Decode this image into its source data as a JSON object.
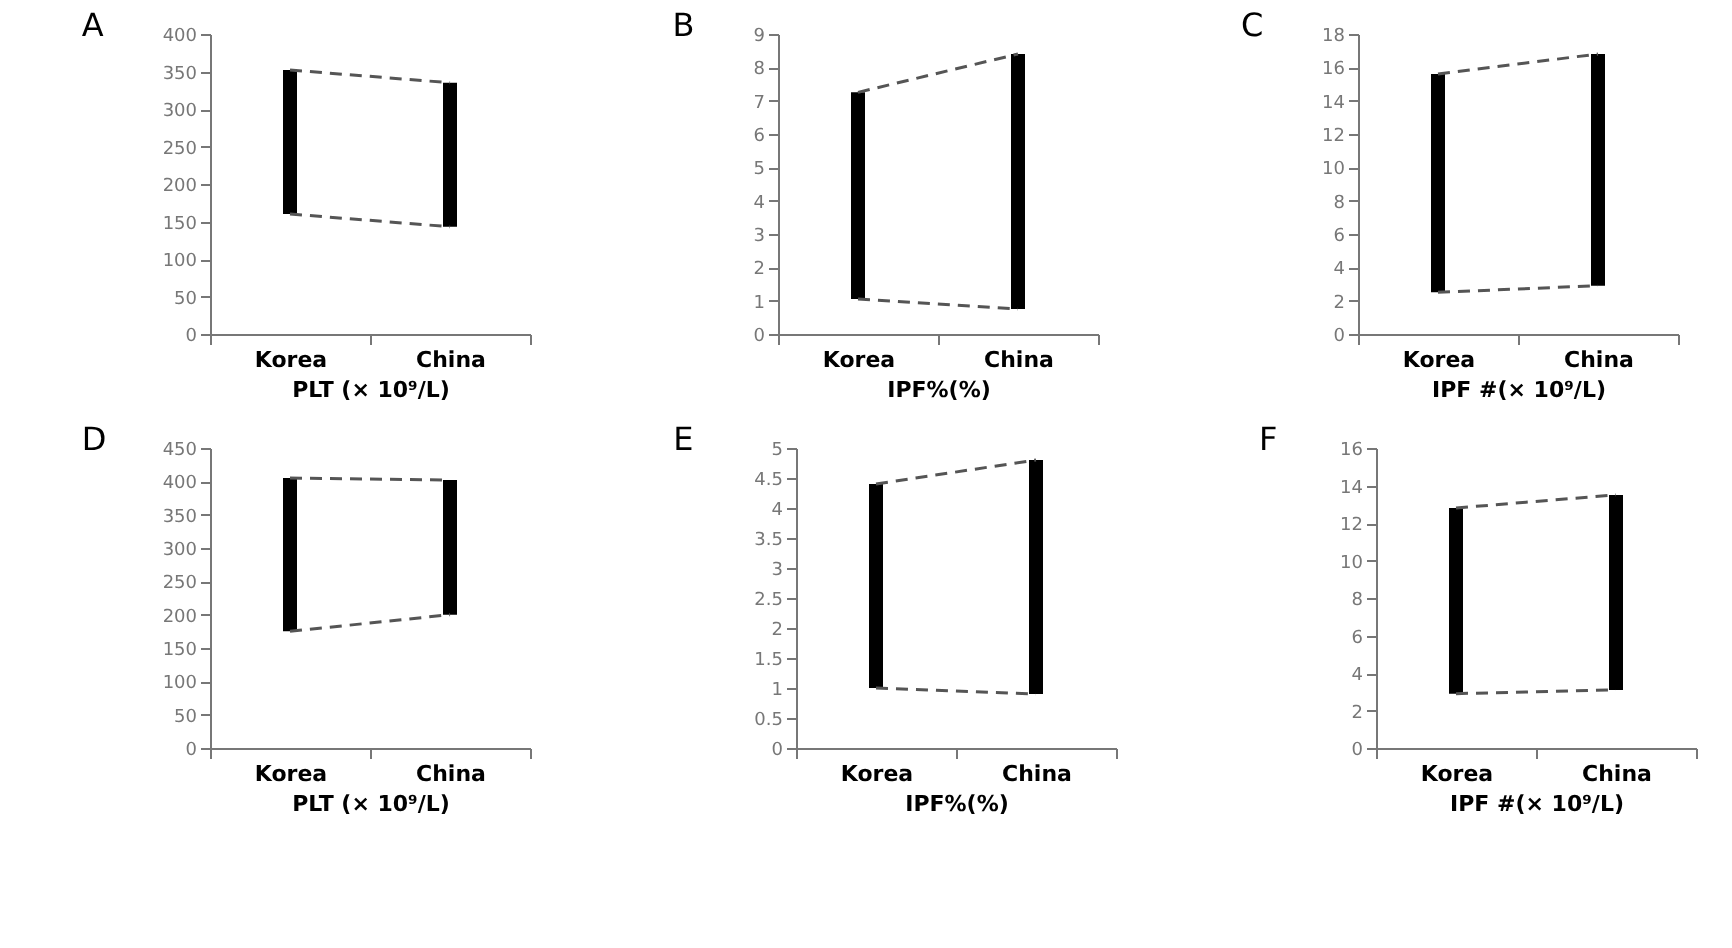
{
  "chart_data": [
    {
      "type": "bar",
      "title": "A",
      "xlabel": "PLT (× 10⁹/L)",
      "categories": [
        "Korea",
        "China"
      ],
      "ylim": [
        0,
        400
      ],
      "yticks": [
        0,
        50,
        100,
        150,
        200,
        250,
        300,
        350,
        400
      ],
      "grid": false,
      "legend": false,
      "series": [
        {
          "color": "#000000",
          "base": [
            160,
            143
          ],
          "values": [
            192,
            192
          ]
        },
        {
          "type": "line",
          "color": "#555555",
          "line_style": "dashed",
          "values": [
            352,
            335
          ]
        },
        {
          "type": "line",
          "color": "#555555",
          "line_style": "dashed",
          "values": [
            160,
            143
          ]
        }
      ]
    },
    {
      "type": "bar",
      "title": "B",
      "xlabel": "IPF%(%)",
      "categories": [
        "Korea",
        "China"
      ],
      "ylim": [
        0,
        9
      ],
      "yticks": [
        0,
        1,
        2,
        3,
        4,
        5,
        6,
        7,
        8,
        9
      ],
      "grid": false,
      "legend": false,
      "series": [
        {
          "color": "#000000",
          "base": [
            1.05,
            0.75
          ],
          "values": [
            6.2,
            7.65
          ]
        },
        {
          "type": "line",
          "color": "#555555",
          "line_style": "dashed",
          "values": [
            7.25,
            8.4
          ]
        },
        {
          "type": "line",
          "color": "#555555",
          "line_style": "dashed",
          "values": [
            1.05,
            0.75
          ]
        }
      ]
    },
    {
      "type": "bar",
      "title": "C",
      "xlabel": "IPF #(× 10⁹/L)",
      "categories": [
        "Korea",
        "China"
      ],
      "ylim": [
        0,
        18
      ],
      "yticks": [
        0,
        2,
        4,
        6,
        8,
        10,
        12,
        14,
        16,
        18
      ],
      "grid": false,
      "legend": false,
      "series": [
        {
          "color": "#000000",
          "base": [
            2.5,
            2.9
          ],
          "values": [
            13.1,
            13.9
          ]
        },
        {
          "type": "line",
          "color": "#555555",
          "line_style": "dashed",
          "values": [
            15.6,
            16.8
          ]
        },
        {
          "type": "line",
          "color": "#555555",
          "line_style": "dashed",
          "values": [
            2.5,
            2.9
          ]
        }
      ]
    },
    {
      "type": "bar",
      "title": "D",
      "xlabel": "PLT (× 10⁹/L)",
      "categories": [
        "Korea",
        "China"
      ],
      "ylim": [
        0,
        450
      ],
      "yticks": [
        0,
        50,
        100,
        150,
        200,
        250,
        300,
        350,
        400,
        450
      ],
      "grid": false,
      "legend": false,
      "series": [
        {
          "color": "#000000",
          "base": [
            175,
            200
          ],
          "values": [
            230,
            202
          ]
        },
        {
          "type": "line",
          "color": "#555555",
          "line_style": "dashed",
          "values": [
            405,
            402
          ]
        },
        {
          "type": "line",
          "color": "#555555",
          "line_style": "dashed",
          "values": [
            175,
            200
          ]
        }
      ]
    },
    {
      "type": "bar",
      "title": "E",
      "xlabel": "IPF%(%)",
      "categories": [
        "Korea",
        "China"
      ],
      "ylim": [
        0,
        5
      ],
      "yticks": [
        0,
        0.5,
        1,
        1.5,
        2,
        2.5,
        3,
        3.5,
        4,
        4.5,
        5
      ],
      "grid": false,
      "legend": false,
      "series": [
        {
          "color": "#000000",
          "base": [
            1.0,
            0.9
          ],
          "values": [
            3.4,
            3.9
          ]
        },
        {
          "type": "line",
          "color": "#555555",
          "line_style": "dashed",
          "values": [
            4.4,
            4.8
          ]
        },
        {
          "type": "line",
          "color": "#555555",
          "line_style": "dashed",
          "values": [
            1.0,
            0.9
          ]
        }
      ]
    },
    {
      "type": "bar",
      "title": "F",
      "xlabel": "IPF #(× 10⁹/L)",
      "categories": [
        "Korea",
        "China"
      ],
      "ylim": [
        0,
        16
      ],
      "yticks": [
        0,
        2,
        4,
        6,
        8,
        10,
        12,
        14,
        16
      ],
      "grid": false,
      "legend": false,
      "series": [
        {
          "color": "#000000",
          "base": [
            2.9,
            3.1
          ],
          "values": [
            9.9,
            10.4
          ]
        },
        {
          "type": "line",
          "color": "#555555",
          "line_style": "dashed",
          "values": [
            12.8,
            13.5
          ]
        },
        {
          "type": "line",
          "color": "#555555",
          "line_style": "dashed",
          "values": [
            2.9,
            3.1
          ]
        }
      ]
    }
  ]
}
